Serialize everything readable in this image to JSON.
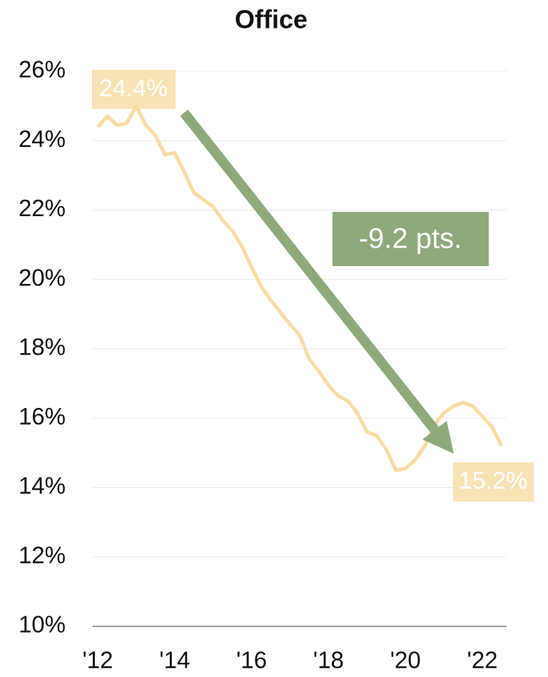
{
  "chart_data": {
    "type": "line",
    "title": "Office",
    "x": [
      2012,
      2012.25,
      2012.5,
      2012.75,
      2013,
      2013.25,
      2013.5,
      2013.75,
      2014,
      2014.25,
      2014.5,
      2014.75,
      2015,
      2015.25,
      2015.5,
      2015.75,
      2016,
      2016.25,
      2016.5,
      2016.75,
      2017,
      2017.25,
      2017.5,
      2017.75,
      2018,
      2018.25,
      2018.5,
      2018.75,
      2019,
      2019.25,
      2019.5,
      2019.75,
      2020,
      2020.25,
      2020.5,
      2020.75,
      2021,
      2021.25,
      2021.5,
      2021.75,
      2022,
      2022.25,
      2022.5
    ],
    "values": [
      24.4,
      24.7,
      24.45,
      24.5,
      25.0,
      24.45,
      24.15,
      23.6,
      23.65,
      23.1,
      22.5,
      22.3,
      22.1,
      21.7,
      21.4,
      20.95,
      20.35,
      19.8,
      19.4,
      19.05,
      18.7,
      18.4,
      17.7,
      17.35,
      16.95,
      16.65,
      16.5,
      16.15,
      15.6,
      15.5,
      15.1,
      14.5,
      14.55,
      14.8,
      15.2,
      15.8,
      16.15,
      16.35,
      16.45,
      16.35,
      16.05,
      15.75,
      15.2
    ],
    "color": "#f6dca4",
    "start_label": "24.4%",
    "end_label": "15.2%",
    "change_label": "-9.2 pts.",
    "xlim": [
      2011.87,
      2022.63
    ],
    "xticks": [
      {
        "value": 2012,
        "label": "'12"
      },
      {
        "value": 2014,
        "label": "'14"
      },
      {
        "value": 2016,
        "label": "'16"
      },
      {
        "value": 2018,
        "label": "'18"
      },
      {
        "value": 2020,
        "label": "'20"
      },
      {
        "value": 2022,
        "label": "'22"
      }
    ],
    "ylim": [
      10,
      26
    ],
    "yticks": [
      {
        "value": 10,
        "label": "10%"
      },
      {
        "value": 12,
        "label": "12%"
      },
      {
        "value": 14,
        "label": "14%"
      },
      {
        "value": 16,
        "label": "16%"
      },
      {
        "value": 18,
        "label": "18%"
      },
      {
        "value": 20,
        "label": "20%"
      },
      {
        "value": 22,
        "label": "22%"
      },
      {
        "value": 24,
        "label": "24%"
      },
      {
        "value": 26,
        "label": "26%"
      }
    ],
    "grid": true
  }
}
